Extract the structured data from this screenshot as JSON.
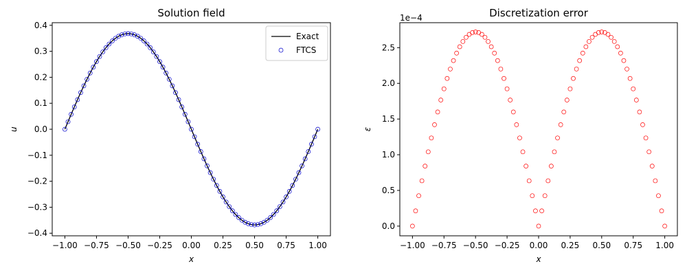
{
  "chart_data": [
    {
      "type": "line",
      "title": "Solution field",
      "xlabel": "x",
      "ylabel": "u",
      "xlim": [
        -1.1,
        1.1
      ],
      "ylim": [
        -0.41,
        0.41
      ],
      "xticks": [
        -1.0,
        -0.75,
        -0.5,
        -0.25,
        0.0,
        0.25,
        0.5,
        0.75,
        1.0
      ],
      "xtick_labels": [
        "−1.00",
        "−0.75",
        "−0.50",
        "−0.25",
        "0.00",
        "0.25",
        "0.50",
        "0.75",
        "1.00"
      ],
      "yticks": [
        -0.4,
        -0.3,
        -0.2,
        -0.1,
        0.0,
        0.1,
        0.2,
        0.3,
        0.4
      ],
      "ytick_labels": [
        "−0.4",
        "−0.3",
        "−0.2",
        "−0.1",
        "0.0",
        "0.1",
        "0.2",
        "0.3",
        "0.4"
      ],
      "grid": false,
      "legend_position": "top-right",
      "series": [
        {
          "name": "Exact",
          "kind": "line",
          "color": "#000000",
          "function": "u = -0.368 · sin(πx)",
          "x_range": [
            -1,
            1
          ]
        },
        {
          "name": "FTCS",
          "kind": "scatter",
          "color": "#0000cc",
          "function": "u = -0.368 · sin(πx)",
          "x_range": [
            -1,
            1
          ],
          "n_points": 81
        }
      ]
    },
    {
      "type": "scatter",
      "title": "Discretization error",
      "xlabel": "x",
      "ylabel": "ε",
      "y_offset_label": "1e−4",
      "xlim": [
        -1.1,
        1.1
      ],
      "ylim": [
        -0.136,
        2.85
      ],
      "xticks": [
        -1.0,
        -0.75,
        -0.5,
        -0.25,
        0.0,
        0.25,
        0.5,
        0.75,
        1.0
      ],
      "xtick_labels": [
        "−1.00",
        "−0.75",
        "−0.50",
        "−0.25",
        "0.00",
        "0.25",
        "0.50",
        "0.75",
        "1.00"
      ],
      "yticks": [
        0.0,
        0.5,
        1.0,
        1.5,
        2.0,
        2.5
      ],
      "ytick_labels": [
        "0.0",
        "0.5",
        "1.0",
        "1.5",
        "2.0",
        "2.5"
      ],
      "grid": false,
      "series": [
        {
          "kind": "scatter",
          "color": "#ff0000",
          "function": "ε (×1e-4) = 2.72 · |sin(πx)|",
          "x_range": [
            -1,
            1
          ],
          "n_points": 81
        }
      ]
    }
  ]
}
